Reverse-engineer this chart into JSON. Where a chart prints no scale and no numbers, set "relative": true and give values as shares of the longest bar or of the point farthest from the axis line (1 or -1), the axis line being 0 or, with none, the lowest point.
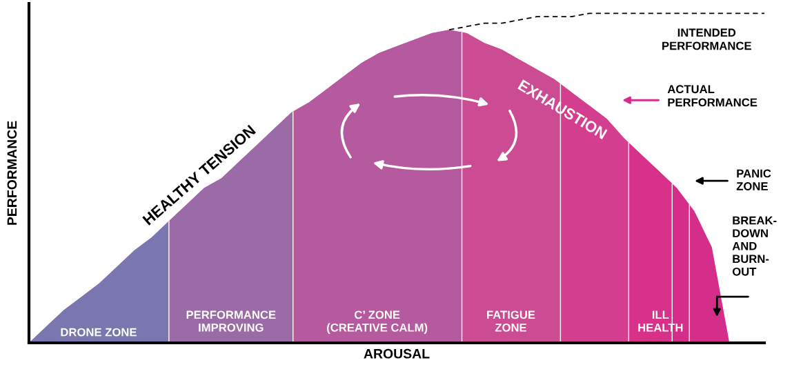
{
  "chart_data": {
    "type": "area",
    "relative": true,
    "xlabel": "AROUSAL",
    "ylabel": "PERFORMANCE",
    "categories": [
      null,
      null,
      null,
      null,
      null,
      null,
      null,
      null,
      null,
      null,
      null,
      null,
      null,
      null,
      null,
      null,
      null,
      null,
      null,
      null,
      null,
      null,
      null,
      null,
      null,
      null,
      null,
      null,
      null,
      null,
      null,
      null,
      null,
      null,
      null,
      null,
      null,
      null,
      null,
      null,
      null,
      null,
      null
    ],
    "series": [
      {
        "name": "ACTUAL PERFORMANCE",
        "color": "#d42e8a",
        "values": [
          0,
          0.05,
          0.1,
          0.14,
          0.18,
          0.23,
          0.28,
          0.32,
          0.37,
          0.42,
          0.47,
          0.5,
          0.55,
          0.6,
          0.65,
          0.7,
          0.73,
          0.77,
          0.81,
          0.85,
          0.88,
          0.9,
          0.92,
          0.94,
          0.95,
          0.94,
          0.91,
          0.89,
          0.86,
          0.83,
          0.8,
          0.76,
          0.72,
          0.68,
          0.62,
          0.57,
          0.52,
          0.47,
          0.4,
          0.29,
          0,
          null,
          null
        ]
      },
      {
        "name": "INTENDED PERFORMANCE",
        "type": "line",
        "color": "#000000",
        "line_style": "dashed",
        "values": [
          null,
          null,
          null,
          null,
          null,
          null,
          null,
          null,
          null,
          null,
          null,
          null,
          null,
          null,
          null,
          null,
          null,
          null,
          null,
          null,
          null,
          null,
          null,
          null,
          0.95,
          0.96,
          0.97,
          0.97,
          0.98,
          0.99,
          0.99,
          0.99,
          1,
          1,
          1,
          1,
          1,
          1,
          1,
          1,
          1,
          1,
          1
        ]
      }
    ],
    "annotations": [
      "HEALTHY TENSION",
      "EXHAUSTION",
      "PANIC\nZONE",
      "BREAK-\nDOWN\nAND\nBURN-\nOUT",
      "DRONE ZONE",
      "PERFORMANCE\nIMPROVING",
      "C’ ZONE\n(CREATIVE CALM)",
      "FATIGUE\nZONE",
      "ILL\nHEALTH"
    ]
  }
}
